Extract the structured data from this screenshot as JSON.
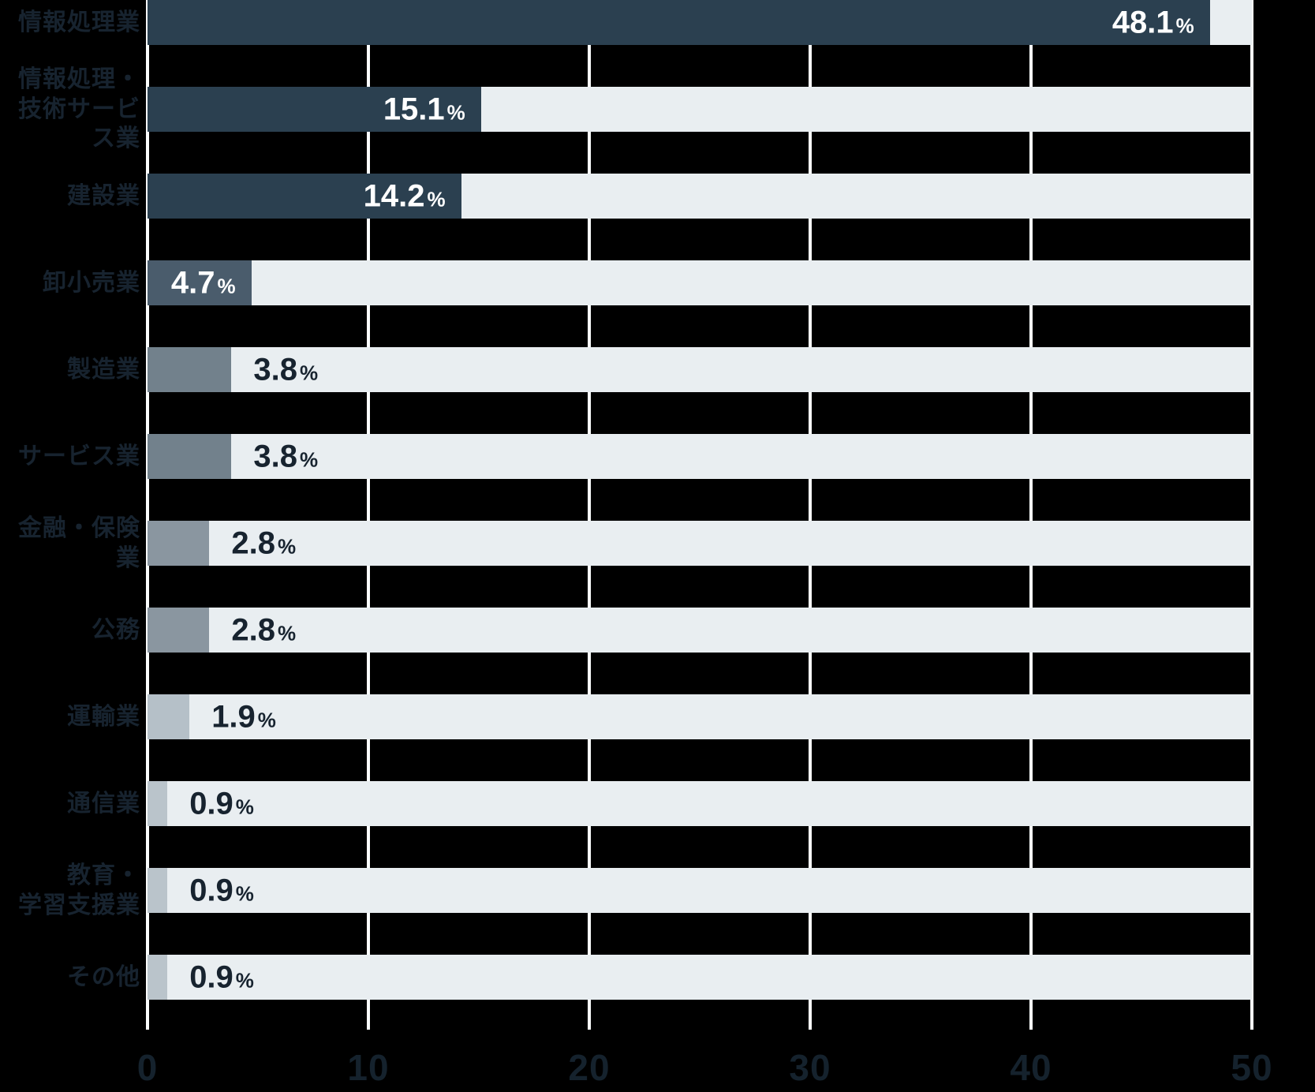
{
  "chart_data": {
    "type": "bar",
    "orientation": "horizontal",
    "title": "",
    "unit": "%",
    "categories": [
      "情報処理業",
      "情報処理・\n技術サービス業",
      "建設業",
      "卸小売業",
      "製造業",
      "サービス業",
      "金融・保険業",
      "公務",
      "運輸業",
      "通信業",
      "教育・\n学習支援業",
      "その他"
    ],
    "values": [
      48.1,
      15.1,
      14.2,
      4.7,
      3.8,
      3.8,
      2.8,
      2.8,
      1.9,
      0.9,
      0.9,
      0.9
    ],
    "value_labels": [
      "48.1",
      "15.1",
      "14.2",
      "4.7",
      "3.8",
      "3.8",
      "2.8",
      "2.8",
      "1.9",
      "0.9",
      "0.9",
      "0.9"
    ],
    "value_label_positions": [
      "inside",
      "inside",
      "inside",
      "inside",
      "outside",
      "outside",
      "outside",
      "outside",
      "outside",
      "outside",
      "outside",
      "outside"
    ],
    "bar_colors": [
      "#2b4050",
      "#2b4050",
      "#2b4050",
      "#4a5c6c",
      "#72818c",
      "#72818c",
      "#8a96a0",
      "#8a96a0",
      "#b5c0c8",
      "#bac4cb",
      "#bac4cb",
      "#bac4cb"
    ],
    "xlim": [
      0,
      50
    ],
    "x_ticks": [
      "0",
      "10",
      "20",
      "30",
      "40",
      "50"
    ],
    "grid": true,
    "legend": false,
    "colors": {
      "background": "#000000",
      "track": "#e9eef1",
      "grid_line": "#fbfdfd",
      "category_label": "#17232f",
      "tick_label": "#15222d",
      "value_inside": "#ffffff",
      "value_outside": "#17232f"
    }
  }
}
